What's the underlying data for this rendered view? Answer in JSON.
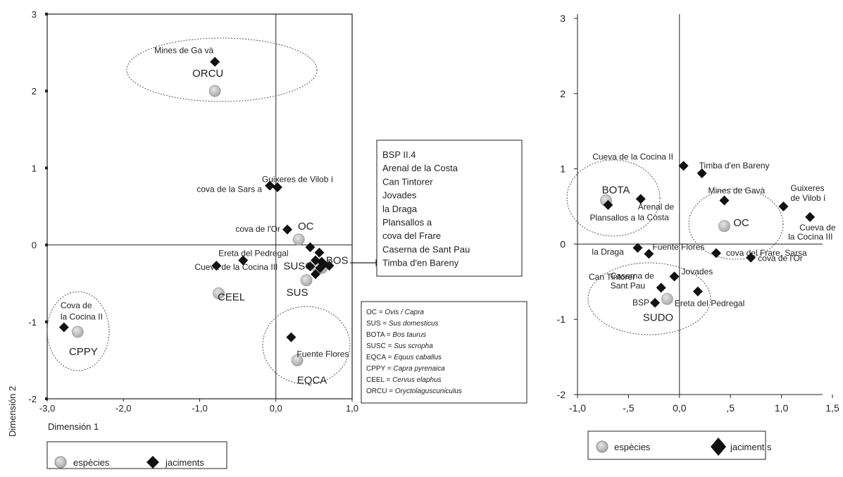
{
  "chart_data": [
    {
      "type": "scatter",
      "xlabel": "Dimensión 1",
      "ylabel": "Dimensión 2",
      "xlim": [
        -3.0,
        1.0
      ],
      "ylim": [
        -2.0,
        3.0
      ],
      "x_ticks": [
        "-3,0",
        "-2,0",
        "-1,0",
        "0,0",
        "1,0"
      ],
      "y_ticks": [
        "-2",
        "-1",
        "0",
        "1",
        "2",
        "3"
      ],
      "legend": {
        "placement": "bottom",
        "species": "espècies",
        "sites": "jaciments"
      },
      "species": [
        {
          "label": "ORCU",
          "x": -0.8,
          "y": 2.0
        },
        {
          "label": "OC",
          "x": 0.3,
          "y": 0.07
        },
        {
          "label": "BOS",
          "x": 0.6,
          "y": -0.3
        },
        {
          "label": "SUSC",
          "x": 0.55,
          "y": -0.3
        },
        {
          "label": "CEEL",
          "x": -0.75,
          "y": -0.63
        },
        {
          "label": "SUS",
          "x": 0.4,
          "y": -0.46
        },
        {
          "label": "CPPY",
          "x": -2.6,
          "y": -1.13
        },
        {
          "label": "EQCA",
          "x": 0.28,
          "y": -1.5
        }
      ],
      "sites": [
        {
          "label": "Mines de Ga và",
          "x": -0.8,
          "y": 2.38
        },
        {
          "label": "Guixeres de Vilob í",
          "x": 0.02,
          "y": 0.75
        },
        {
          "label": "cova de la Sars a",
          "x": -0.08,
          "y": 0.77
        },
        {
          "label": "cova de l'Or",
          "x": 0.15,
          "y": 0.2
        },
        {
          "label": "Ereta del Pedregal",
          "x": -0.43,
          "y": -0.2
        },
        {
          "label": "Cueva de la Cocina III",
          "x": -0.78,
          "y": -0.27
        },
        {
          "label": "Cova de la Cocina II",
          "x": -2.78,
          "y": -1.07
        },
        {
          "label": "Fuente Flores",
          "x": 0.2,
          "y": -1.2
        },
        {
          "label": "",
          "x": 0.45,
          "y": -0.03
        },
        {
          "label": "",
          "x": 0.57,
          "y": -0.1
        },
        {
          "label": "",
          "x": 0.52,
          "y": -0.2
        },
        {
          "label": "",
          "x": 0.6,
          "y": -0.22
        },
        {
          "label": "",
          "x": 0.45,
          "y": -0.28
        },
        {
          "label": "",
          "x": 0.58,
          "y": -0.3
        },
        {
          "label": "",
          "x": 0.7,
          "y": -0.27
        },
        {
          "label": "",
          "x": 0.52,
          "y": -0.38
        },
        {
          "label": "",
          "x": 0.63,
          "y": -0.25
        }
      ],
      "grouped_sites": [
        "BSP II.4",
        "Arenal de la Costa",
        "Can Tintorer",
        "Jovades",
        "la Draga",
        "Plansallos a",
        "cova del Frare",
        "Caserna de Sant Pau",
        "Timba d'en Bareny"
      ],
      "abbreviation_key": [
        {
          "code": "OC",
          "eq": " = ",
          "name": "Ovis / Capra"
        },
        {
          "code": "SUS",
          "eq": " = ",
          "name": "Sus domesticus"
        },
        {
          "code": "BOTA",
          "eq": "  = ",
          "name": "Bos taurus"
        },
        {
          "code": "SUSC",
          "eq": " = ",
          "name": "Sus scropha"
        },
        {
          "code": "EQCA",
          "eq": " = ",
          "name": "Equus caballus"
        },
        {
          "code": "CPPY",
          "eq": " = ",
          "name": "Capra pyrenaica"
        },
        {
          "code": "CEEL",
          "eq": "  = ",
          "name": "Cervus elaphus"
        },
        {
          "code": "ORCU",
          "eq": " = ",
          "name": "Oryctolaguscuniculus"
        }
      ]
    },
    {
      "type": "scatter",
      "xlim": [
        -1.0,
        1.5
      ],
      "ylim": [
        -2.0,
        3.0
      ],
      "x_ticks": [
        "-1,0",
        "-,5",
        "0,0",
        ",5",
        "1,0",
        "1,5"
      ],
      "y_ticks": [
        "-2",
        "-1",
        "0",
        "1",
        "2",
        "3"
      ],
      "legend": {
        "placement": "bottom",
        "species": "espècies",
        "sites": "jaciment s"
      },
      "species": [
        {
          "label": "BOTA",
          "x": -0.72,
          "y": 0.58
        },
        {
          "label": "OC",
          "x": 0.44,
          "y": 0.24
        },
        {
          "label": "SUDO",
          "x": -0.12,
          "y": -0.73
        }
      ],
      "sites": [
        {
          "label": "Cueva de la Cocina II",
          "x": 0.04,
          "y": 1.04
        },
        {
          "label": "Timba d'en Bareny",
          "x": 0.22,
          "y": 0.94
        },
        {
          "label": "Arenal de la Costa",
          "x": -0.38,
          "y": 0.6
        },
        {
          "label": "Plansallos a",
          "x": -0.7,
          "y": 0.52
        },
        {
          "label": "Mines de Gavà",
          "x": 0.44,
          "y": 0.58
        },
        {
          "label": "Guixeres de Vilob í",
          "x": 1.02,
          "y": 0.5
        },
        {
          "label": "Cueva de la Cocina III",
          "x": 1.28,
          "y": 0.36
        },
        {
          "label": "la Draga",
          "x": -0.41,
          "y": -0.05
        },
        {
          "label": "Fuente Flores",
          "x": -0.3,
          "y": -0.13
        },
        {
          "label": "cova del Frare, Sarsa",
          "x": 0.36,
          "y": -0.12
        },
        {
          "label": "cova de l'Or",
          "x": 0.7,
          "y": -0.18
        },
        {
          "label": "Jovades",
          "x": -0.05,
          "y": -0.43
        },
        {
          "label": "Caserna de Sant Pau",
          "x": -0.18,
          "y": -0.58
        },
        {
          "label": "BSP",
          "x": -0.24,
          "y": -0.78
        },
        {
          "label": "Ereta del Pedregal",
          "x": 0.18,
          "y": -0.63
        }
      ],
      "extra_labels": [
        "Can Tintorer"
      ]
    }
  ]
}
